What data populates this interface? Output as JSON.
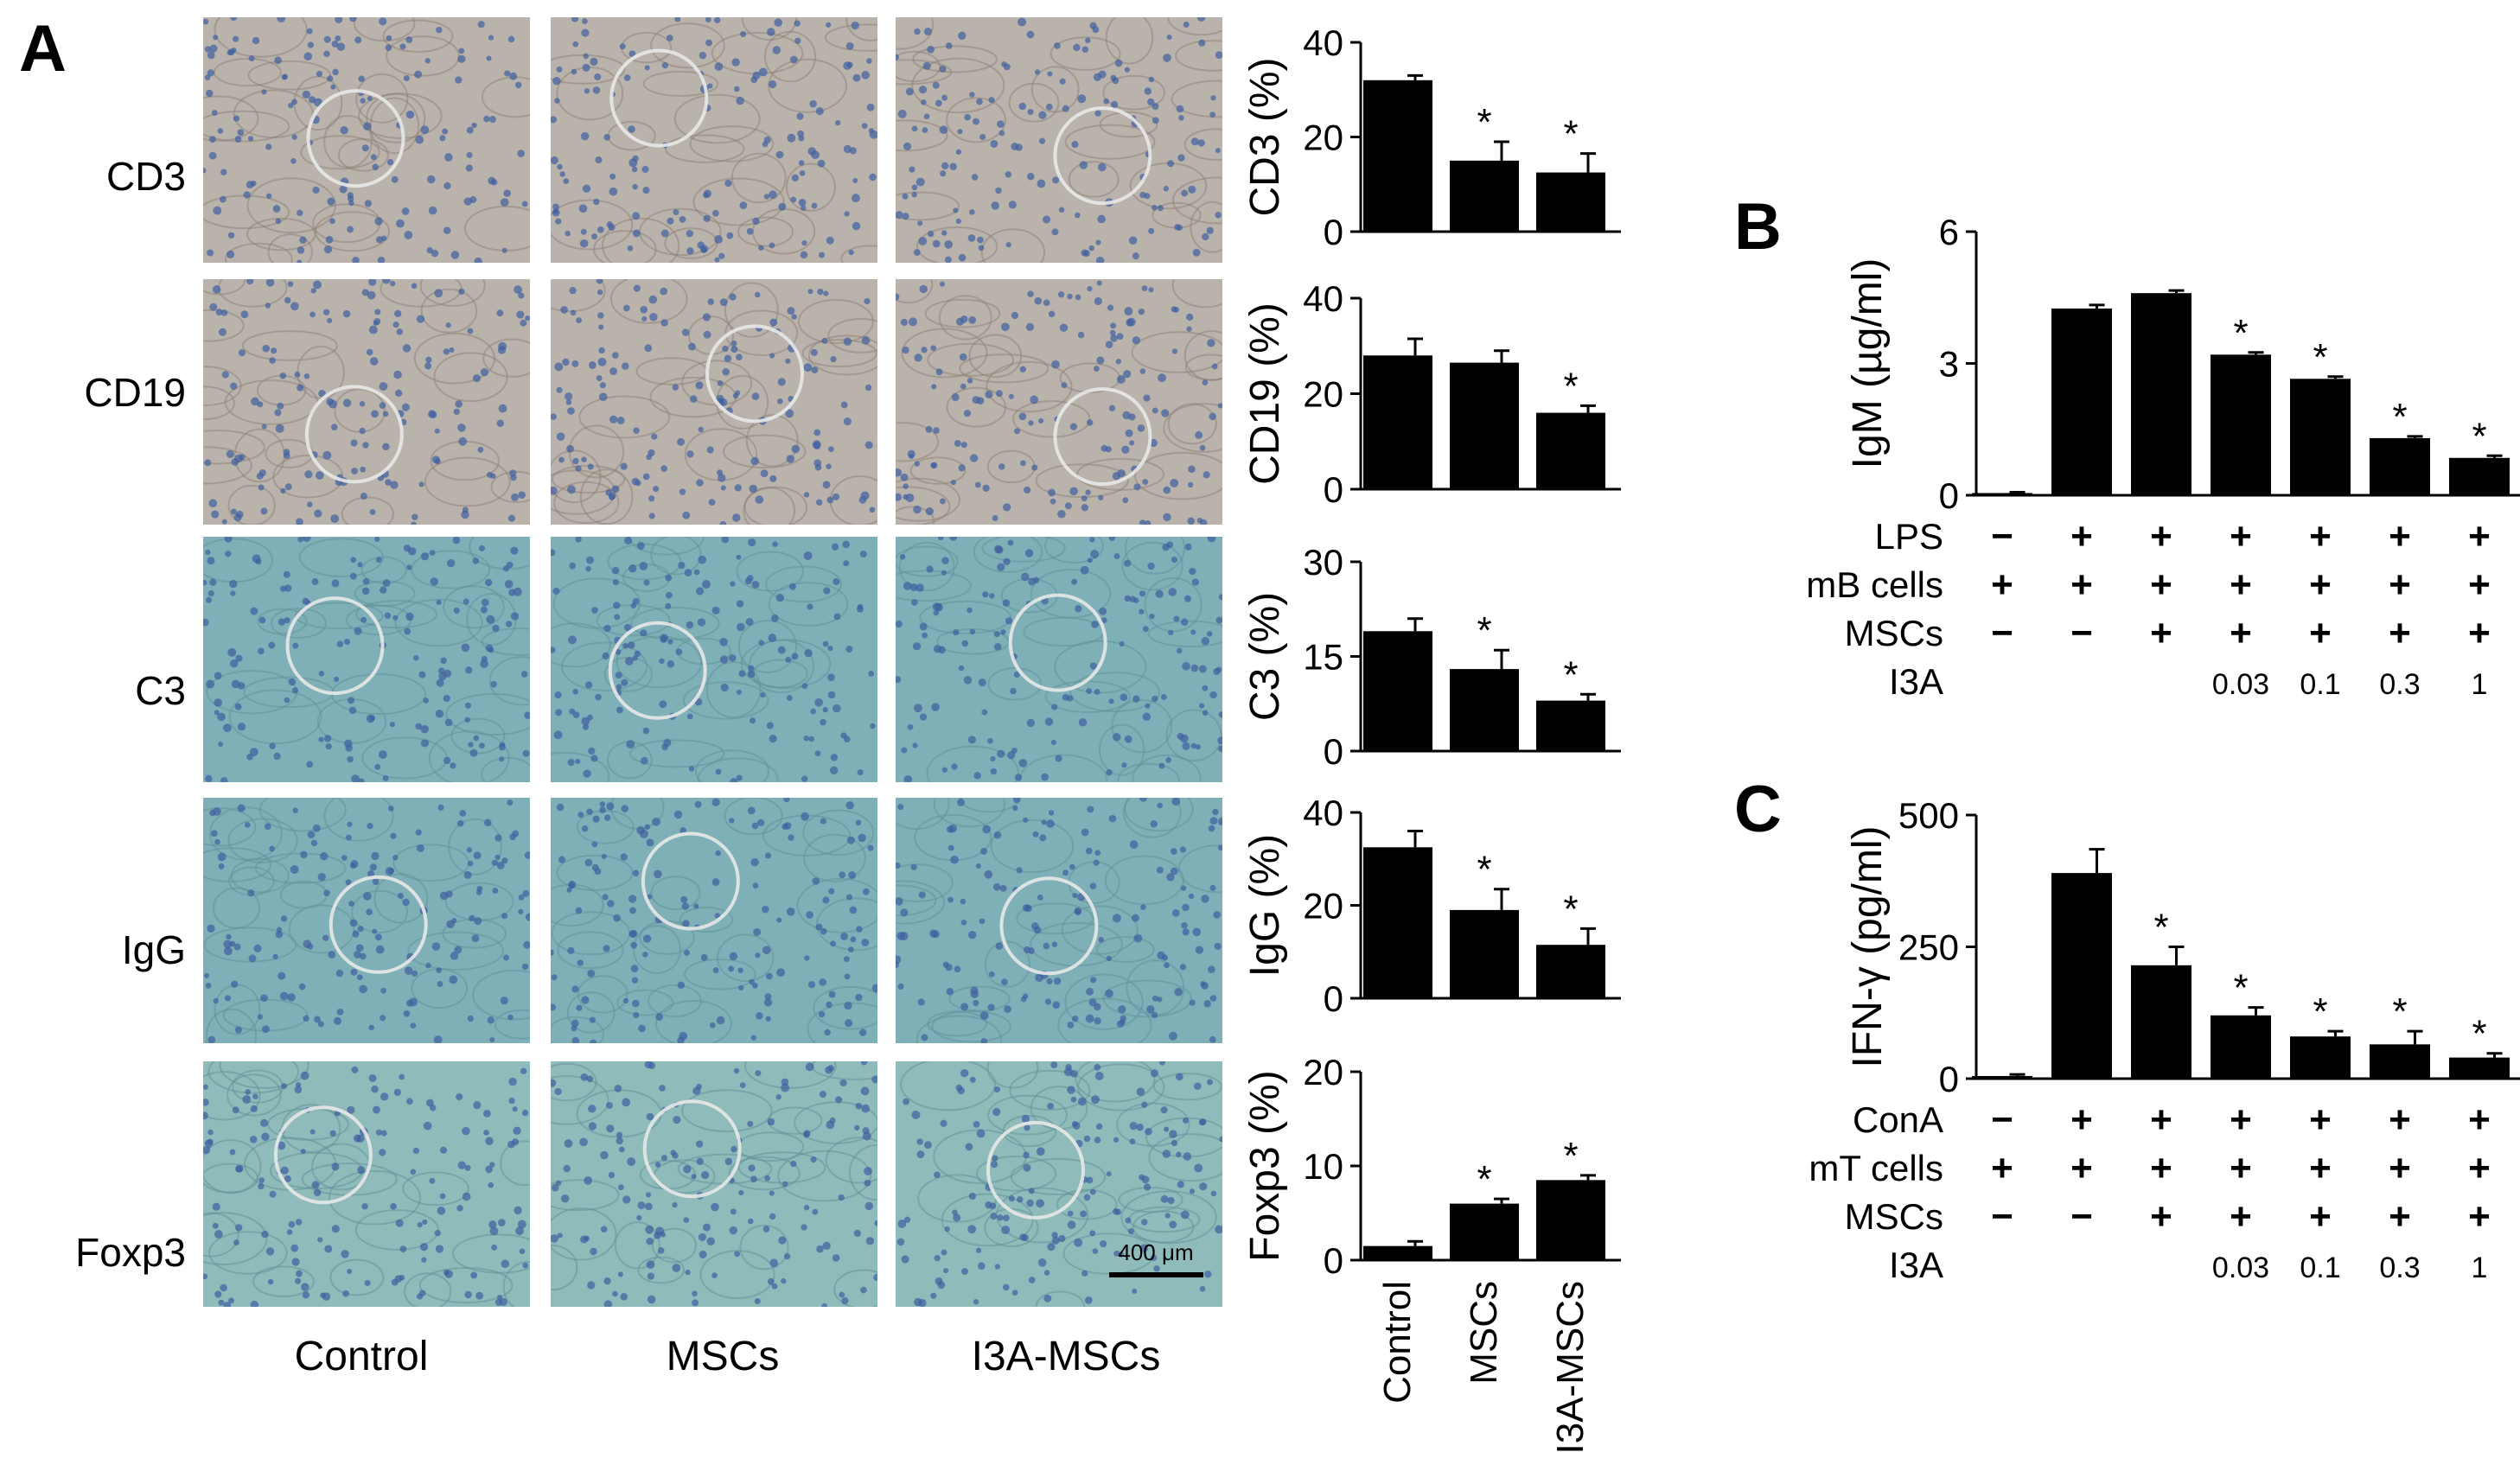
{
  "panel_letters": [
    "A",
    "B",
    "C"
  ],
  "panelA": {
    "row_labels": [
      "CD3",
      "CD19",
      "C3",
      "IgG",
      "Foxp3"
    ],
    "column_labels": [
      "Control",
      "MSCs",
      "I3A-MSCs"
    ],
    "scale_bar_label": "400 μm",
    "image_tints": {
      "dab_brown": "#b9b3ac",
      "teal": "#7fb0b7",
      "foxp3": "#8fbcbb",
      "nuclei": "#3f5f9f"
    }
  },
  "table_rows": {
    "B": [
      {
        "label": "LPS",
        "cells": [
          "−",
          "+",
          "+",
          "+",
          "+",
          "+",
          "+"
        ]
      },
      {
        "label": "mB cells",
        "cells": [
          "+",
          "+",
          "+",
          "+",
          "+",
          "+",
          "+"
        ]
      },
      {
        "label": "MSCs",
        "cells": [
          "−",
          "−",
          "+",
          "+",
          "+",
          "+",
          "+"
        ]
      },
      {
        "label": "I3A",
        "cells": [
          "",
          "",
          "",
          "0.03",
          "0.1",
          "0.3",
          "1"
        ]
      }
    ],
    "C": [
      {
        "label": "ConA",
        "cells": [
          "−",
          "+",
          "+",
          "+",
          "+",
          "+",
          "+"
        ]
      },
      {
        "label": "mT cells",
        "cells": [
          "+",
          "+",
          "+",
          "+",
          "+",
          "+",
          "+"
        ]
      },
      {
        "label": "MSCs",
        "cells": [
          "−",
          "−",
          "+",
          "+",
          "+",
          "+",
          "+"
        ]
      },
      {
        "label": "I3A",
        "cells": [
          "",
          "",
          "",
          "0.03",
          "0.1",
          "0.3",
          "1"
        ]
      }
    ]
  },
  "chart_data": [
    {
      "type": "bar",
      "ylabel": "CD3 (%)",
      "categories": [
        "Control",
        "MSCs",
        "I3A-MSCs"
      ],
      "values": [
        32,
        15,
        12.5
      ],
      "errors": [
        1,
        4,
        4
      ],
      "significant": [
        false,
        true,
        true
      ],
      "ylim": [
        0,
        40
      ],
      "yticks": [
        0,
        20,
        40
      ],
      "xticklabels_shown": false
    },
    {
      "type": "bar",
      "ylabel": "CD19 (%)",
      "categories": [
        "Control",
        "MSCs",
        "I3A-MSCs"
      ],
      "values": [
        28,
        26.5,
        16
      ],
      "errors": [
        3.5,
        2.5,
        1.5
      ],
      "significant": [
        false,
        false,
        true
      ],
      "ylim": [
        0,
        40
      ],
      "yticks": [
        0,
        20,
        40
      ],
      "xticklabels_shown": false
    },
    {
      "type": "bar",
      "ylabel": "C3 (%)",
      "categories": [
        "Control",
        "MSCs",
        "I3A-MSCs"
      ],
      "values": [
        19,
        13,
        8
      ],
      "errors": [
        2,
        3,
        1
      ],
      "significant": [
        false,
        true,
        true
      ],
      "ylim": [
        0,
        30
      ],
      "yticks": [
        0,
        15,
        30
      ],
      "xticklabels_shown": false
    },
    {
      "type": "bar",
      "ylabel": "IgG (%)",
      "categories": [
        "Control",
        "MSCs",
        "I3A-MSCs"
      ],
      "values": [
        32.5,
        19,
        11.5
      ],
      "errors": [
        3.5,
        4.5,
        3.5
      ],
      "significant": [
        false,
        true,
        true
      ],
      "ylim": [
        0,
        40
      ],
      "yticks": [
        0,
        20,
        40
      ],
      "xticklabels_shown": false
    },
    {
      "type": "bar",
      "ylabel": "Foxp3 (%)",
      "categories": [
        "Control",
        "MSCs",
        "I3A-MSCs"
      ],
      "values": [
        1.5,
        6,
        8.5
      ],
      "errors": [
        0.5,
        0.5,
        0.5
      ],
      "significant": [
        false,
        true,
        true
      ],
      "ylim": [
        0,
        20
      ],
      "yticks": [
        0,
        10,
        20
      ],
      "xticklabels_shown": true
    },
    {
      "type": "bar",
      "ylabel": "IgM (µg/ml)",
      "categories": [
        "1",
        "2",
        "3",
        "4",
        "5",
        "6",
        "7"
      ],
      "values": [
        0.05,
        4.25,
        4.6,
        3.2,
        2.65,
        1.3,
        0.85
      ],
      "errors": [
        0.02,
        0.08,
        0.06,
        0.05,
        0.05,
        0.04,
        0.05
      ],
      "significant": [
        false,
        false,
        false,
        true,
        true,
        true,
        true
      ],
      "ylim": [
        0,
        6
      ],
      "yticks": [
        0,
        3,
        6
      ],
      "xticklabels_shown": false
    },
    {
      "type": "bar",
      "ylabel": "IFN-γ (pg/ml)",
      "categories": [
        "1",
        "2",
        "3",
        "4",
        "5",
        "6",
        "7"
      ],
      "values": [
        5,
        390,
        215,
        120,
        80,
        65,
        40
      ],
      "errors": [
        3,
        45,
        35,
        15,
        10,
        25,
        8
      ],
      "significant": [
        false,
        false,
        true,
        true,
        true,
        true,
        true
      ],
      "ylim": [
        0,
        500
      ],
      "yticks": [
        0,
        250,
        500
      ],
      "xticklabels_shown": false
    }
  ]
}
